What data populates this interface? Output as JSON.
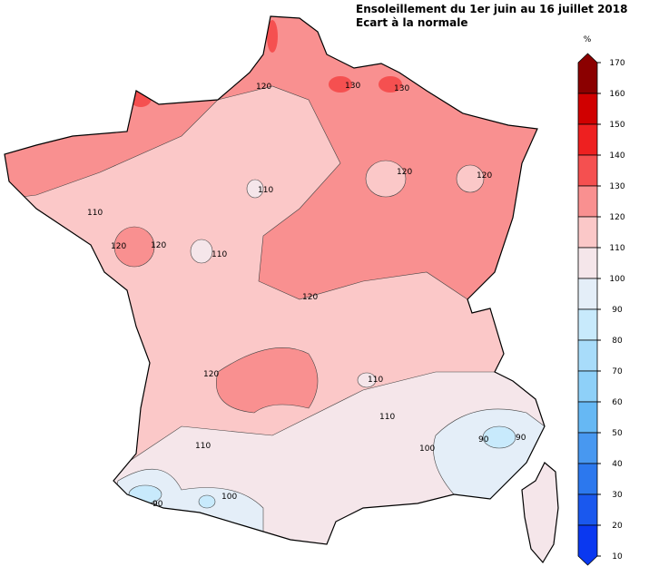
{
  "header": {
    "title": "Ensoleillement du 1er juin au 16 juillet 2018",
    "subtitle": "Ecart à la normale"
  },
  "legend": {
    "unit": "%",
    "ticks": [
      170,
      160,
      150,
      140,
      130,
      120,
      110,
      100,
      90,
      80,
      70,
      60,
      50,
      40,
      30,
      20,
      10
    ],
    "colors": [
      "#8b0000",
      "#d00000",
      "#ee2020",
      "#f55050",
      "#f99090",
      "#fbc8c8",
      "#f5e6ea",
      "#e4eef8",
      "#c8eafc",
      "#a8dcfa",
      "#8ed0f8",
      "#66b8f4",
      "#4898f0",
      "#2c78ee",
      "#1a58ee",
      "#0a38f0"
    ]
  },
  "contours": {
    "labels": [
      "120",
      "130",
      "130",
      "120",
      "120",
      "110",
      "110",
      "120",
      "110",
      "120",
      "120",
      "120",
      "110",
      "110",
      "110",
      "100",
      "90",
      "90",
      "90",
      "100"
    ]
  }
}
